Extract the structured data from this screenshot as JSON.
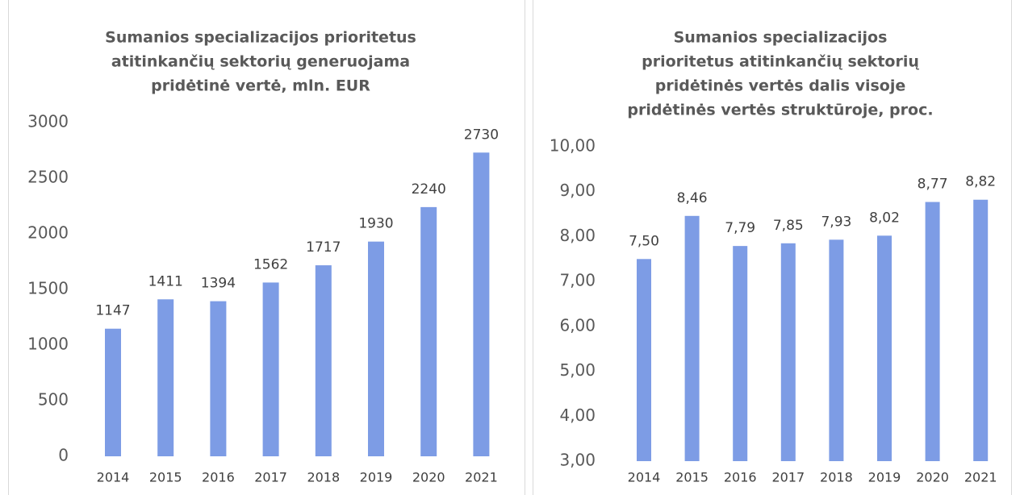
{
  "chart_data": [
    {
      "type": "bar",
      "title": [
        "Sumanios specializacijos prioritetus",
        "atitinkančių sektorių generuojama",
        "pridėtinė vertė, mln. EUR"
      ],
      "categories": [
        "2014",
        "2015",
        "2016",
        "2017",
        "2018",
        "2019",
        "2020",
        "2021"
      ],
      "values": [
        1147,
        1411,
        1394,
        1562,
        1717,
        1930,
        2240,
        2730
      ],
      "color": "#7d9ce5",
      "ylim": [
        0,
        3000
      ],
      "yticks": [
        0,
        500,
        1000,
        1500,
        2000,
        2500,
        3000
      ]
    },
    {
      "type": "bar",
      "title": [
        "Sumanios specializacijos",
        "prioritetus atitinkančių sektorių",
        "pridėtinės vertės dalis visoje",
        "pridėtinės vertės struktūroje, proc."
      ],
      "categories": [
        "2014",
        "2015",
        "2016",
        "2017",
        "2018",
        "2019",
        "2020",
        "2021"
      ],
      "values": [
        7.5,
        8.46,
        7.79,
        7.85,
        7.93,
        8.02,
        8.77,
        8.82
      ],
      "value_labels": [
        "7,50",
        "8,46",
        "7,79",
        "7,85",
        "7,93",
        "8,02",
        "8,77",
        "8,82"
      ],
      "color": "#7d9ce5",
      "ylim": [
        3,
        10
      ],
      "yticks": [
        {
          "value": 3,
          "label": "3,00"
        },
        {
          "value": 4,
          "label": "4,00"
        },
        {
          "value": 5,
          "label": "5,00"
        },
        {
          "value": 6,
          "label": "6,00"
        },
        {
          "value": 7,
          "label": "7,00"
        },
        {
          "value": 8,
          "label": "8,00"
        },
        {
          "value": 9,
          "label": "9,00"
        },
        {
          "value": 10,
          "label": "10,00"
        }
      ]
    }
  ]
}
